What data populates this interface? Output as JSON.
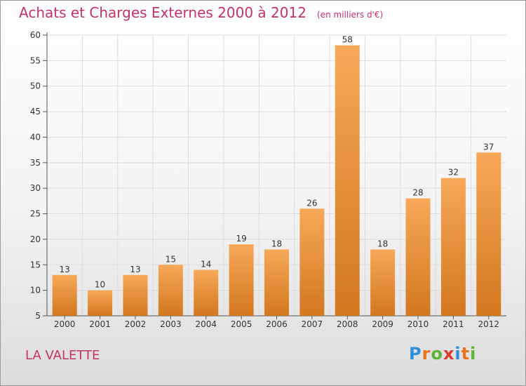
{
  "header": {
    "title": "Achats et Charges Externes 2000 à 2012",
    "subtitle": "(en milliers d'€)"
  },
  "location": "LA VALETTE",
  "logo": {
    "text": "Proxiti",
    "letter_colors": [
      "#2f8fd8",
      "#e8731a",
      "#5fb336",
      "#d93a2a",
      "#2f8fd8",
      "#e8731a",
      "#5fb336"
    ]
  },
  "colors": {
    "bar_light": "#f7a858",
    "bar_dark": "#d2781f",
    "text": "#333333",
    "grid": "#dddddd",
    "accent": "#c2336a"
  },
  "chart_data": {
    "type": "bar",
    "categories": [
      "2000",
      "2001",
      "2002",
      "2003",
      "2004",
      "2005",
      "2006",
      "2007",
      "2008",
      "2009",
      "2010",
      "2011",
      "2012"
    ],
    "values": [
      13,
      10,
      13,
      15,
      14,
      19,
      18,
      26,
      58,
      18,
      28,
      32,
      37
    ],
    "ylim": [
      5,
      60
    ],
    "yticks": [
      5,
      10,
      15,
      20,
      25,
      30,
      35,
      40,
      45,
      50,
      55,
      60
    ],
    "grid": true,
    "data_labels": true
  }
}
